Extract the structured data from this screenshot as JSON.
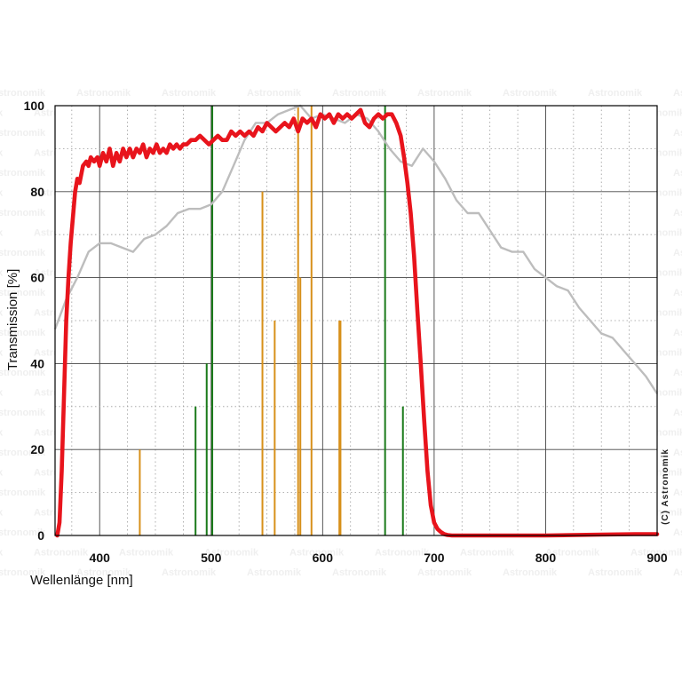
{
  "chart_data": {
    "type": "line",
    "xlabel": "Wellenlänge [nm]",
    "ylabel": "Transmission [%]",
    "xlim": [
      360,
      900
    ],
    "ylim": [
      0,
      100
    ],
    "x_ticks": [
      400,
      500,
      600,
      700,
      800,
      900
    ],
    "y_ticks": [
      0,
      20,
      40,
      60,
      80,
      100
    ],
    "grid": true,
    "credit": "(C) Astronomik",
    "watermark": "Astronomik",
    "colors": {
      "filter_curve": "#e8141c",
      "sensor_curve": "#bdbdbd",
      "emission_green": "#1a7a1a",
      "emission_orange": "#d7901a"
    },
    "series": [
      {
        "role": "filter transmission",
        "x": [
          362,
          364,
          366,
          368,
          370,
          372,
          374,
          376,
          378,
          380,
          382,
          385,
          388,
          390,
          392,
          395,
          398,
          400,
          403,
          406,
          409,
          412,
          415,
          418,
          421,
          424,
          427,
          430,
          433,
          436,
          439,
          442,
          445,
          448,
          451,
          454,
          457,
          460,
          463,
          466,
          469,
          472,
          475,
          478,
          482,
          486,
          490,
          494,
          498,
          502,
          506,
          510,
          514,
          518,
          522,
          526,
          530,
          534,
          538,
          542,
          546,
          550,
          554,
          558,
          562,
          566,
          570,
          574,
          578,
          582,
          586,
          590,
          594,
          598,
          602,
          606,
          610,
          614,
          618,
          622,
          626,
          630,
          634,
          638,
          642,
          646,
          650,
          654,
          658,
          662,
          666,
          670,
          673,
          676,
          679,
          682,
          685,
          688,
          691,
          694,
          697,
          700,
          703,
          706,
          709,
          712,
          716,
          720,
          730,
          760,
          800,
          850,
          880,
          900
        ],
        "values": [
          0,
          3,
          15,
          32,
          50,
          60,
          68,
          74,
          80,
          83,
          82,
          86,
          87,
          86,
          88,
          87,
          88,
          86,
          89,
          87,
          90,
          86,
          89,
          87,
          90,
          88,
          90,
          88,
          90,
          89,
          91,
          88,
          90,
          89,
          91,
          89,
          90,
          89,
          91,
          90,
          91,
          90,
          91,
          91,
          92,
          92,
          93,
          92,
          91,
          92,
          93,
          92,
          92,
          94,
          93,
          94,
          93,
          94,
          93,
          95,
          94,
          96,
          95,
          94,
          95,
          96,
          95,
          97,
          94,
          97,
          96,
          97,
          95,
          98,
          97,
          98,
          96,
          98,
          97,
          98,
          97,
          98,
          99,
          96,
          95,
          97,
          98,
          97,
          98,
          98,
          96,
          93,
          88,
          82,
          75,
          65,
          52,
          40,
          27,
          15,
          7,
          3,
          1.5,
          0.8,
          0.3,
          0.1,
          0,
          0,
          0,
          0,
          0,
          0.2,
          0.3,
          0.3
        ]
      },
      {
        "role": "sensor response",
        "x": [
          360,
          370,
          380,
          390,
          400,
          410,
          420,
          430,
          440,
          450,
          460,
          470,
          480,
          490,
          500,
          510,
          520,
          530,
          540,
          550,
          560,
          570,
          580,
          590,
          600,
          610,
          620,
          630,
          640,
          650,
          660,
          670,
          680,
          690,
          700,
          710,
          720,
          730,
          740,
          750,
          760,
          770,
          780,
          790,
          800,
          810,
          820,
          830,
          840,
          850,
          860,
          870,
          880,
          890,
          900
        ],
        "values": [
          48,
          55,
          60,
          66,
          68,
          68,
          67,
          66,
          69,
          70,
          72,
          75,
          76,
          76,
          77,
          80,
          86,
          92,
          96,
          96,
          98,
          99,
          100,
          97,
          98,
          97,
          96,
          98,
          97,
          94,
          90,
          87,
          86,
          90,
          87,
          83,
          78,
          75,
          75,
          71,
          67,
          66,
          66,
          62,
          60,
          58,
          57,
          53,
          50,
          47,
          46,
          43,
          40,
          37,
          33
        ]
      }
    ],
    "emission_lines": [
      {
        "group": "green",
        "x": 486,
        "value": 30
      },
      {
        "group": "green",
        "x": 496,
        "value": 40
      },
      {
        "group": "green",
        "x": 501,
        "value": 100
      },
      {
        "group": "green",
        "x": 656,
        "value": 100
      },
      {
        "group": "green",
        "x": 672,
        "value": 30
      },
      {
        "group": "orange",
        "x": 436,
        "value": 20
      },
      {
        "group": "orange",
        "x": 546,
        "value": 80
      },
      {
        "group": "orange",
        "x": 557,
        "value": 50
      },
      {
        "group": "orange",
        "x": 578,
        "value": 100
      },
      {
        "group": "orange",
        "x": 580,
        "value": 60
      },
      {
        "group": "orange",
        "x": 590,
        "value": 100
      },
      {
        "group": "orange",
        "x": 615,
        "value": 50
      },
      {
        "group": "orange",
        "x": 616,
        "value": 50
      }
    ]
  }
}
